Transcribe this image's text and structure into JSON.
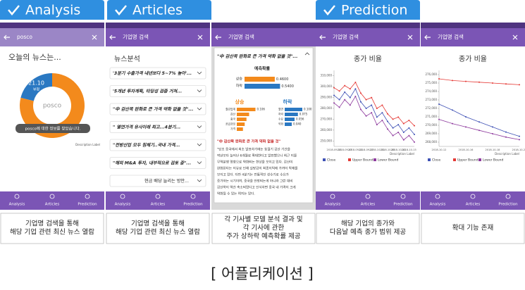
{
  "tabs": [
    "Analysis",
    "Articles",
    "Prediction"
  ],
  "nav": [
    "Analysis",
    "Articles",
    "Prediction"
  ],
  "screens": [
    {
      "header": "posco",
      "heading": "오늘의 뉴스는...",
      "center": "posco",
      "toast": "posco에 대한 정보를 찾았습니다."
    },
    {
      "header": "기업명 검색",
      "heading": "뉴스분석",
      "items": [
        "'3분기 수출가격 내년보다 5~7% 높아'...",
        "'5개년 투자계획, 타당성 검증 거쳐...",
        "\"中 감산목 완화로 큰 가격 약화 없을 것\"...",
        "\" 열연가격 유사이래 최고...4분기...",
        "\"전방산업 모두 침체기..국내 가격...",
        "\"해외 M&A 투자, 내부적으로 검토 중\"...",
        "현금 배당 늘리는 방안..."
      ]
    },
    {
      "header": "기업명 검색",
      "headline": "\"中 감산목 완화로 큰 가격 약화 없을 것\"...",
      "body_title": "\"中 감산목 완화로 큰 가격 약화 없을 것\"",
      "body": [
        "\"당초 중국에서 최초 발표하기에는 동절기 감산 기간을",
        "작년보다 늘어난 6개월로 확대한다고 발표했으나 최근 이를",
        "무역분쟁 영향으로 약화되는 현상을 보이고 있다. 감산이",
        "완화된다는 이유로 인해 실망감이 최종이익에 가까이 악재를",
        "보이고 있다. 다만 4분기는 전통적인 성수기로 수요가",
        "증가하는 시기이며, 중국을 안정되는게 아니라 그런 대비",
        "감산목이 약간 축소되었다고 인식하면 중국 내 가격이 크게",
        "약화될 수 있는 여지는 있다."
      ]
    },
    {
      "header": "기업명 검색"
    },
    {
      "header": "기업명 검색"
    }
  ],
  "chart_data": [
    {
      "type": "pie",
      "categories": [
        "부정",
        null
      ],
      "values": [
        21.1,
        78.9
      ],
      "value_labels": [
        "21.10",
        null
      ],
      "colors": [
        "#2a78c2",
        "#f38a1c"
      ],
      "description": "Description Label"
    },
    {
      "type": "bar",
      "title": "예측확률",
      "categories": [
        "상승",
        "하락"
      ],
      "values": [
        0.46,
        0.54
      ],
      "value_labels": [
        "0.4600",
        "0.5400"
      ],
      "colors": [
        "#f38a1c",
        "#2a78c2"
      ],
      "xlim": [
        0,
        0.6
      ]
    },
    {
      "type": "bar",
      "title": "상승",
      "color": "#f38a1c",
      "categories": [
        "철강업계",
        "감산",
        "중국",
        "공급과잉",
        "가격"
      ],
      "values": [
        0.106,
        0.07,
        0.055,
        0.045,
        0.035
      ],
      "value_labels": [
        "0.106",
        null,
        null,
        null,
        null
      ],
      "xlim": [
        0,
        0.12
      ]
    },
    {
      "type": "bar",
      "title": "하락",
      "color": "#2a78c2",
      "categories": [
        "열연",
        "하락",
        "수요",
        "약화"
      ],
      "values": [
        0.1,
        0.075,
        0.056,
        0.04
      ],
      "value_labels": [
        "0.100",
        "0.075",
        "0.056",
        "0.040"
      ],
      "xlim": [
        0,
        0.12
      ]
    },
    {
      "type": "line",
      "title": "종가 비율",
      "description": "Description Label",
      "categories": [
        "2018-09-13",
        null,
        "2018-09-17",
        null,
        "2018-09-21",
        null,
        "2018-09-27",
        null,
        "2018-10-01",
        null,
        "2018-10-05",
        null,
        "2018-10-11",
        null,
        "2018-10-15",
        null
      ],
      "series": [
        {
          "name": "Close",
          "color": "#3f51b5",
          "values": [
            292000,
            288000,
            295000,
            290000,
            298000,
            286000,
            280000,
            283000,
            272000,
            276000,
            268000,
            262000,
            265000,
            258000,
            262000,
            256000
          ]
        },
        {
          "name": "Upper Bound",
          "color": "#e53935",
          "values": [
            299000,
            296000,
            301000,
            298000,
            304000,
            294000,
            288000,
            290000,
            280000,
            283000,
            275000,
            270000,
            272000,
            266000,
            269000,
            264000
          ]
        },
        {
          "name": "Lower Bound",
          "color": "#8e3b9e",
          "values": [
            285000,
            281000,
            288000,
            283000,
            291000,
            279000,
            273000,
            276000,
            265000,
            269000,
            261000,
            255000,
            258000,
            251000,
            255000,
            249000
          ]
        }
      ],
      "ylim": [
        245000,
        315000
      ],
      "yticks": [
        {
          "value": 250000,
          "label": "250,000"
        },
        {
          "value": 260000,
          "label": "260,000"
        },
        {
          "value": 270000,
          "label": "270,000"
        },
        {
          "value": 280000,
          "label": "280,000"
        },
        {
          "value": 290000,
          "label": "290,000"
        },
        {
          "value": 300000,
          "label": "300,000"
        },
        {
          "value": 310000,
          "label": "310,000"
        }
      ]
    },
    {
      "type": "line",
      "title": "종가 비율",
      "description": "Description Label",
      "categories": [
        "2018-10-12",
        null,
        "2018-10-16",
        null,
        "2018-10-18",
        null,
        "2018-10-23"
      ],
      "series": [
        {
          "name": "Close",
          "color": "#3f51b5",
          "values": [
            272500,
            271800,
            271000,
            270400,
            269800,
            269200,
            268700
          ]
        },
        {
          "name": "Upper Bound",
          "color": "#e53935",
          "values": [
            275500,
            275300,
            275200,
            275100,
            275000,
            274900,
            274800
          ]
        },
        {
          "name": "Lower Bound",
          "color": "#8e3b9e",
          "values": [
            270700,
            270200,
            269800,
            269400,
            269000,
            268600,
            268300
          ]
        }
      ],
      "ylim": [
        267500,
        276500
      ],
      "yticks": [
        {
          "value": 268000,
          "label": "268,000"
        },
        {
          "value": 269000,
          "label": "269,000"
        },
        {
          "value": 270000,
          "label": "270,000"
        },
        {
          "value": 271000,
          "label": "271,000"
        },
        {
          "value": 272000,
          "label": "272,000"
        },
        {
          "value": 273000,
          "label": "273,000"
        },
        {
          "value": 274000,
          "label": "274,000"
        },
        {
          "value": 275000,
          "label": "275,000"
        },
        {
          "value": 276000,
          "label": "276,000"
        }
      ]
    }
  ],
  "captions": [
    [
      "기업명 검색을 통해",
      "해당 기업 관련 최신 뉴스 열람"
    ],
    [
      "기업명 검색을 통해",
      "해당 기업 관련 최신 뉴스 열람"
    ],
    [
      "각 기사별 모델 분석 결과 및",
      "각 기사에 관한",
      "주가 상하락 예측확률 제공"
    ],
    [
      "해당 기업의 종가와",
      "다음날 예측 종가 범위 제공"
    ],
    [
      "확대 기능 존재"
    ]
  ],
  "footer": "[ 어플리케이션 ]"
}
